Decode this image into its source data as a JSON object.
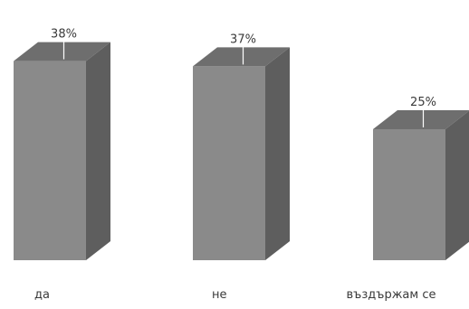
{
  "chart_data": {
    "type": "bar",
    "title": "",
    "xlabel": "",
    "ylabel": "",
    "categories": [
      "да",
      "не",
      "въздържам се"
    ],
    "values": [
      38,
      37,
      25
    ],
    "data_labels": [
      "38%",
      "37%",
      "25%"
    ],
    "ylim": [
      0,
      40
    ],
    "grid": false,
    "legend": "none",
    "style": "3d-column",
    "colors": {
      "front": "#8a8a8a",
      "side": "#5e5e5e",
      "top": "#6e6e6e",
      "text": "#3a3a3a",
      "leader": "#ffffff"
    }
  }
}
